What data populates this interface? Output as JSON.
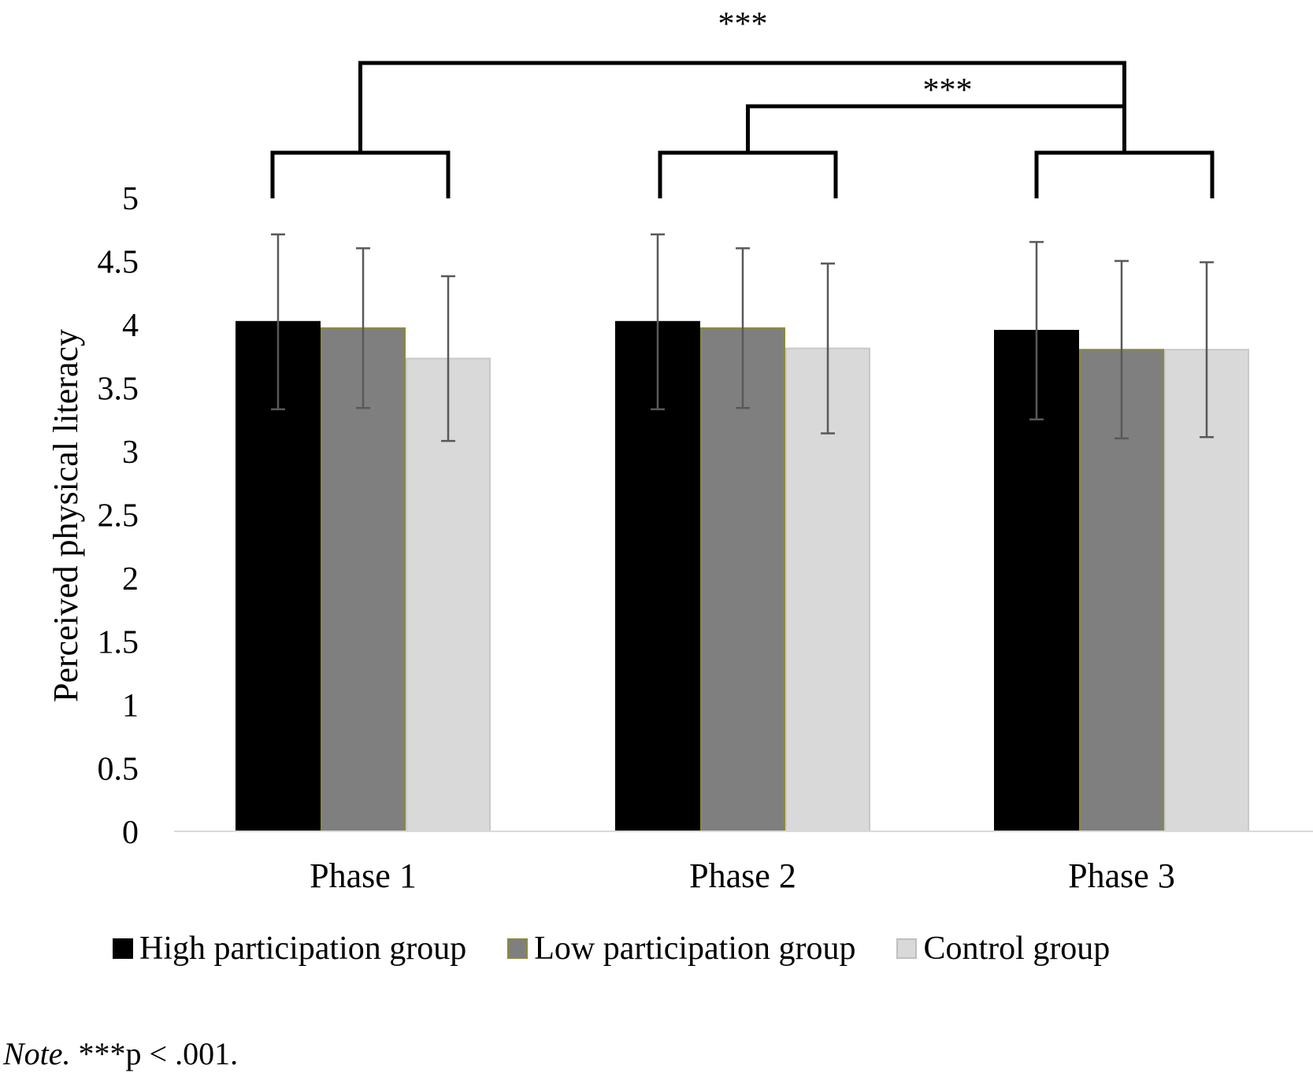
{
  "chart_data": {
    "type": "bar",
    "title": "",
    "xlabel": "",
    "ylabel": "Perceived physical literacy",
    "ylim": [
      0,
      5
    ],
    "yticks": [
      "0",
      "0.5",
      "1",
      "1.5",
      "2",
      "2.5",
      "3",
      "3.5",
      "4",
      "4.5",
      "5"
    ],
    "categories": [
      "Phase 1",
      "Phase 2",
      "Phase 3"
    ],
    "series": [
      {
        "name": "High participation group",
        "color": "#000000",
        "values": [
          4.02,
          4.02,
          3.95
        ],
        "errors": [
          0.69,
          0.69,
          0.7
        ]
      },
      {
        "name": "Low participation group",
        "color": "#7f7f7f",
        "values": [
          3.97,
          3.97,
          3.8
        ],
        "errors": [
          0.63,
          0.63,
          0.7
        ]
      },
      {
        "name": "Control group",
        "color": "#d9d9d9",
        "values": [
          3.73,
          3.81,
          3.8
        ],
        "errors": [
          0.65,
          0.67,
          0.69
        ]
      }
    ],
    "grid": false,
    "legend_position": "bottom",
    "annotations": [
      {
        "label": "***",
        "comparison": "Phase 1 vs Phase 3"
      },
      {
        "label": "***",
        "comparison": "Phase 2 vs Phase 3"
      }
    ]
  },
  "note": {
    "italic": "Note.",
    "text": " ***p < .001."
  }
}
